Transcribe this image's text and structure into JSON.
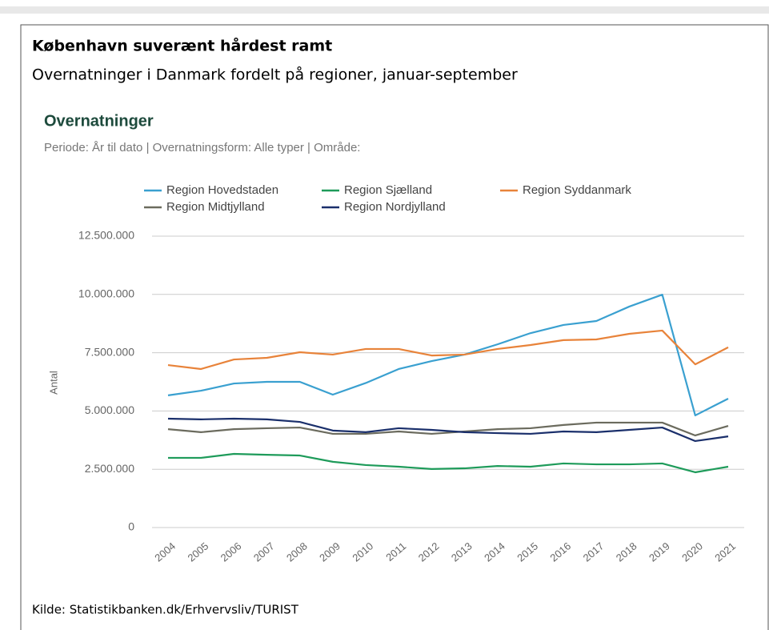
{
  "header": {
    "title": "København suverænt hårdest ramt",
    "subtitle": "Overnatninger i Danmark fordelt på regioner, januar-september"
  },
  "chart_data": {
    "type": "line",
    "title": "Overnatninger",
    "subtitle": "Periode: År til dato | Overnatningsform: Alle typer | Område:",
    "ylabel": "Antal",
    "categories": [
      "2004",
      "2005",
      "2006",
      "2007",
      "2008",
      "2009",
      "2010",
      "2011",
      "2012",
      "2013",
      "2014",
      "2015",
      "2016",
      "2017",
      "2018",
      "2019",
      "2020",
      "2021"
    ],
    "series": [
      {
        "name": "Region Hovedstaden",
        "color": "#3aa0d0",
        "values": [
          5670000,
          5870000,
          6180000,
          6250000,
          6250000,
          5700000,
          6200000,
          6800000,
          7140000,
          7420000,
          7860000,
          8340000,
          8690000,
          8860000,
          9480000,
          9990000,
          4810000,
          5530000
        ]
      },
      {
        "name": "Region Sjælland",
        "color": "#1e9b5a",
        "values": [
          2990000,
          2990000,
          3160000,
          3120000,
          3090000,
          2820000,
          2680000,
          2610000,
          2510000,
          2540000,
          2640000,
          2610000,
          2750000,
          2710000,
          2710000,
          2750000,
          2370000,
          2610000
        ]
      },
      {
        "name": "Region Syddanmark",
        "color": "#e8833a",
        "values": [
          6970000,
          6800000,
          7210000,
          7280000,
          7520000,
          7420000,
          7660000,
          7660000,
          7380000,
          7420000,
          7660000,
          7830000,
          8040000,
          8070000,
          8310000,
          8450000,
          7000000,
          7730000
        ]
      },
      {
        "name": "Region Midtjylland",
        "color": "#6b6b5e",
        "values": [
          4220000,
          4090000,
          4220000,
          4260000,
          4290000,
          4020000,
          4020000,
          4120000,
          4020000,
          4120000,
          4220000,
          4260000,
          4400000,
          4500000,
          4500000,
          4500000,
          3950000,
          4360000
        ]
      },
      {
        "name": "Region Nordjylland",
        "color": "#1a2f6b",
        "values": [
          4670000,
          4640000,
          4670000,
          4640000,
          4530000,
          4160000,
          4090000,
          4260000,
          4190000,
          4090000,
          4050000,
          4020000,
          4120000,
          4090000,
          4190000,
          4290000,
          3710000,
          3910000
        ]
      }
    ],
    "ylim": [
      0,
      12500000
    ],
    "yticks": [
      0,
      {
        "value": 2500000,
        "label": "2.500.000"
      },
      {
        "value": 5000000,
        "label": "5.000.000"
      },
      {
        "value": 7500000,
        "label": "7.500.000"
      },
      {
        "value": 10000000,
        "label": "10.000.000"
      },
      {
        "value": 12500000,
        "label": "12.500.000"
      }
    ],
    "grid": true
  },
  "source": "Kilde: Statistikbanken.dk/Erhvervsliv/TURIST"
}
